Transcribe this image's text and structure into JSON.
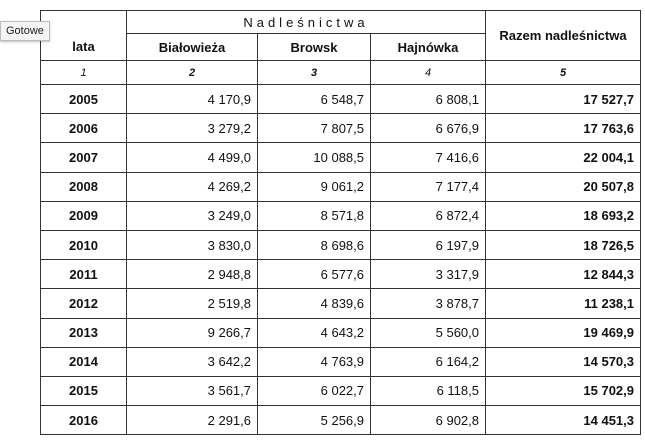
{
  "tooltip": "Gotowe",
  "table": {
    "header": {
      "year": "lata",
      "group": "Nadleśnictwa",
      "columns": [
        "Białowieża",
        "Browsk",
        "Hajnówka"
      ],
      "total": "Razem nadleśnictwa"
    },
    "index_row": [
      "1",
      "2",
      "3",
      "4",
      "5"
    ],
    "rows": [
      [
        "2005",
        "4 170,9",
        "6 548,7",
        "6 808,1",
        "17 527,7"
      ],
      [
        "2006",
        "3 279,2",
        "7 807,5",
        "6 676,9",
        "17 763,6"
      ],
      [
        "2007",
        "4 499,0",
        "10 088,5",
        "7 416,6",
        "22 004,1"
      ],
      [
        "2008",
        "4 269,2",
        "9 061,2",
        "7 177,4",
        "20 507,8"
      ],
      [
        "2009",
        "3 249,0",
        "8 571,8",
        "6 872,4",
        "18 693,2"
      ],
      [
        "2010",
        "3 830,0",
        "8 698,6",
        "6 197,9",
        "18 726,5"
      ],
      [
        "2011",
        "2 948,8",
        "6 577,6",
        "3 317,9",
        "12 844,3"
      ],
      [
        "2012",
        "2 519,8",
        "4 839,6",
        "3 878,7",
        "11 238,1"
      ],
      [
        "2013",
        "9 266,7",
        "4 643,2",
        "5 560,0",
        "19 469,9"
      ],
      [
        "2014",
        "3 642,2",
        "4 763,9",
        "6 164,2",
        "14 570,3"
      ],
      [
        "2015",
        "3 561,7",
        "6 022,7",
        "6 118,5",
        "15 702,9"
      ],
      [
        "2016",
        "2 291,6",
        "5 256,9",
        "6 902,8",
        "14 451,3"
      ]
    ]
  }
}
